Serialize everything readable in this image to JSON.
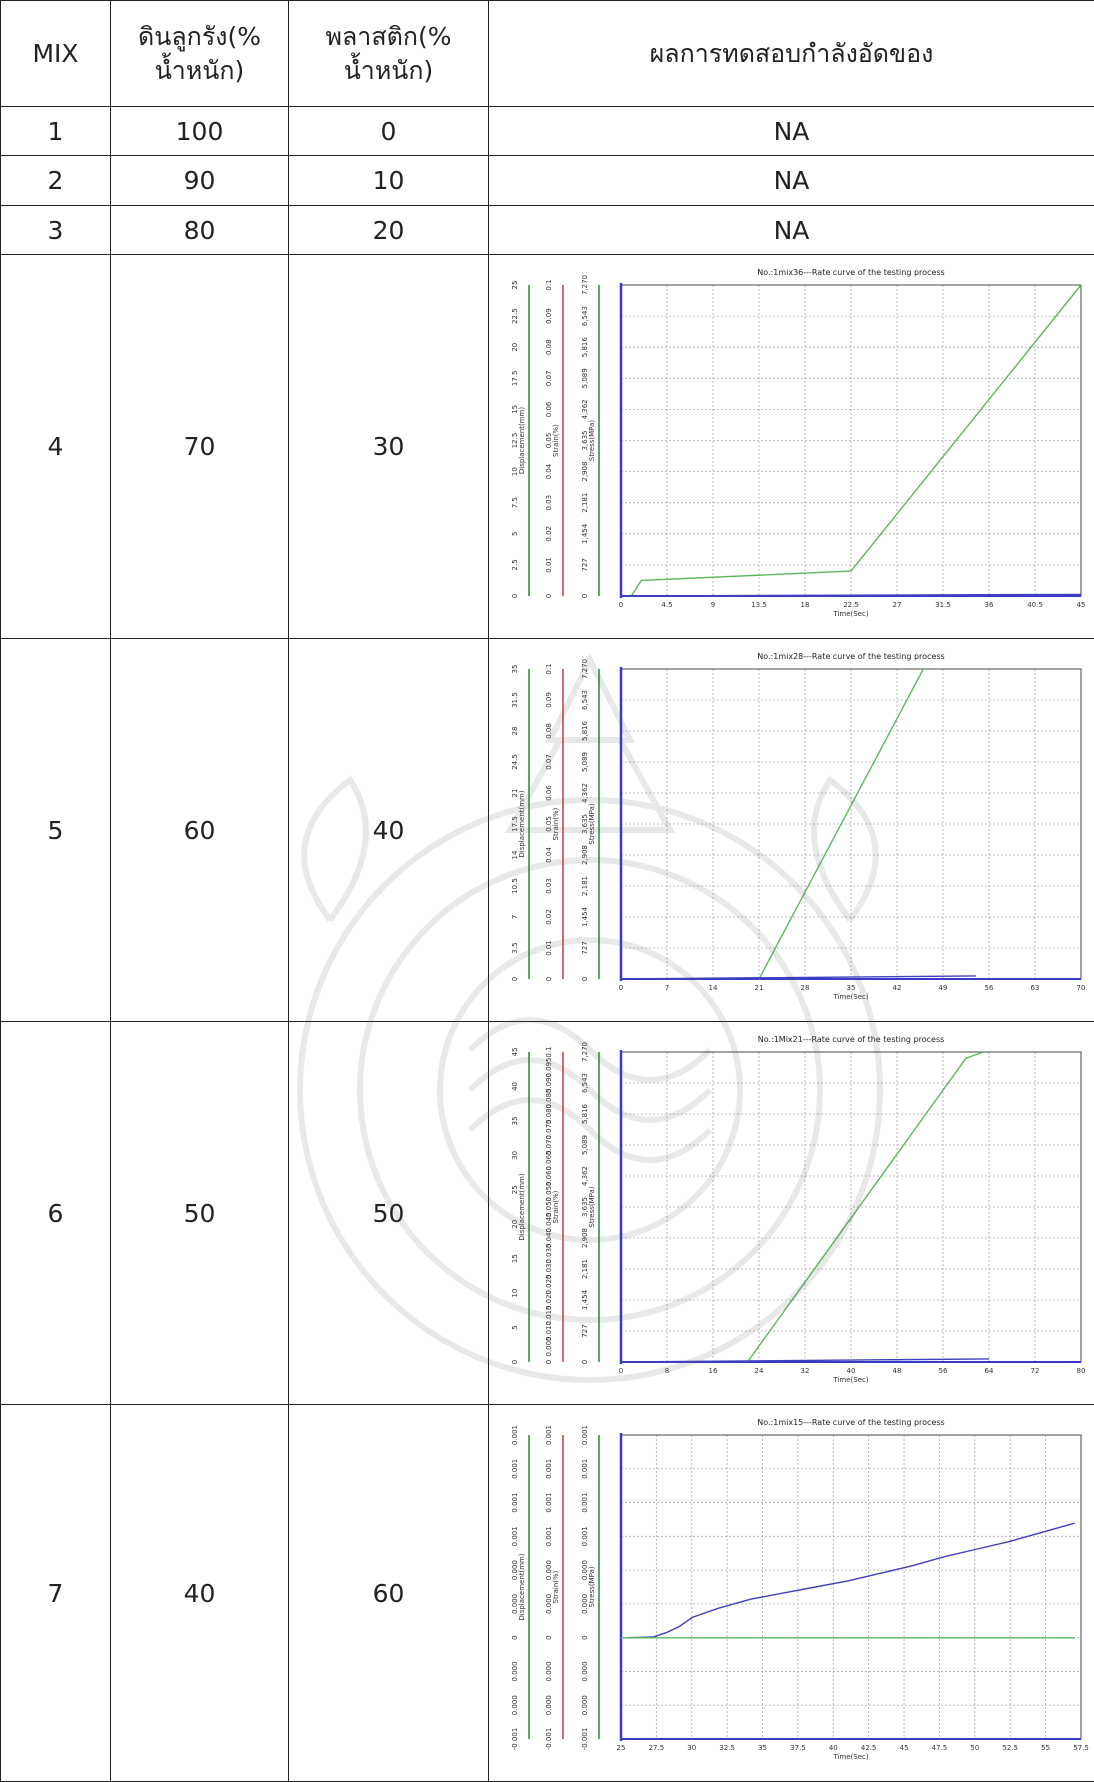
{
  "headers": {
    "mix": "MIX",
    "clay_line1": "ดินลูกรัง(%",
    "clay_line2": "น้ำหนัก)",
    "plastic_line1": "พลาสติก(%",
    "plastic_line2": "น้ำหนัก)",
    "result": "ผลการทดสอบกำลังอัดของ"
  },
  "rows": [
    {
      "mix": "1",
      "clay": "100",
      "plastic": "0",
      "result": "NA"
    },
    {
      "mix": "2",
      "clay": "90",
      "plastic": "10",
      "result": "NA"
    },
    {
      "mix": "3",
      "clay": "80",
      "plastic": "20",
      "result": "NA"
    },
    {
      "mix": "4",
      "clay": "70",
      "plastic": "30"
    },
    {
      "mix": "5",
      "clay": "60",
      "plastic": "40"
    },
    {
      "mix": "6",
      "clay": "50",
      "plastic": "50"
    },
    {
      "mix": "7",
      "clay": "40",
      "plastic": "60"
    }
  ],
  "chart_data": [
    {
      "type": "line",
      "title": "No.:1mix36---Rate curve of the testing process",
      "xlabel": "Time(Sec)",
      "x_ticks": [
        "0",
        "4.5",
        "9",
        "13.5",
        "18",
        "22.5",
        "27",
        "31.5",
        "36",
        "40.5",
        "45"
      ],
      "xlim": [
        0,
        45
      ],
      "y_axes": [
        {
          "label": "Displacement(mm)",
          "ticks": [
            "0",
            "2.5",
            "5",
            "7.5",
            "10",
            "12.5",
            "15",
            "17.5",
            "20",
            "22.5",
            "25"
          ],
          "color": "#2a8a2a"
        },
        {
          "label": "Strain(%)",
          "ticks": [
            "0",
            "0.01",
            "0.02",
            "0.03",
            "0.04",
            "0.05",
            "0.06",
            "0.07",
            "0.08",
            "0.09",
            "0.1"
          ],
          "color": "#2a8a2a"
        },
        {
          "label": "Stress(MPa)",
          "ticks": [
            "0",
            "727",
            "1,454",
            "2,181",
            "2,908",
            "3,635",
            "4,362",
            "5,089",
            "5,816",
            "6,543",
            "7,270"
          ],
          "color": "#333333"
        }
      ],
      "series": [
        {
          "color": "#5cb85c",
          "x": [
            1,
            2,
            22.5,
            45
          ],
          "y": [
            0,
            0.05,
            0.08,
            1.0
          ]
        },
        {
          "color": "#4040c0",
          "x": [
            0,
            45
          ],
          "y": [
            0,
            0.005
          ]
        }
      ]
    },
    {
      "type": "line",
      "title": "No.:1mix28---Rate curve of the testing process",
      "xlabel": "Time(Sec)",
      "x_ticks": [
        "0",
        "7",
        "14",
        "21",
        "28",
        "35",
        "42",
        "49",
        "56",
        "63",
        "70"
      ],
      "xlim": [
        0,
        70
      ],
      "y_axes": [
        {
          "label": "Displacement(mm)",
          "ticks": [
            "0",
            "3.5",
            "7",
            "10.5",
            "14",
            "17.5",
            "21",
            "24.5",
            "28",
            "31.5",
            "35"
          ],
          "color": "#2a8a2a"
        },
        {
          "label": "Strain(%)",
          "ticks": [
            "0",
            "0.01",
            "0.02",
            "0.03",
            "0.04",
            "0.05",
            "0.06",
            "0.07",
            "0.08",
            "0.09",
            "0.1"
          ],
          "color": "#2a8a2a"
        },
        {
          "label": "Stress(MPa)",
          "ticks": [
            "0",
            "727",
            "1,454",
            "2,181",
            "2,908",
            "3,635",
            "4,362",
            "5,089",
            "5,816",
            "6,543",
            "7,270"
          ],
          "color": "#333333"
        }
      ],
      "series": [
        {
          "color": "#5cb85c",
          "x": [
            21,
            46
          ],
          "y": [
            0,
            1.0
          ]
        },
        {
          "color": "#4040c0",
          "x": [
            0,
            54
          ],
          "y": [
            0,
            0.01
          ]
        }
      ]
    },
    {
      "type": "line",
      "title": "No.:1Mix21---Rate curve of the testing process",
      "xlabel": "Time(Sec)",
      "x_ticks": [
        "0",
        "8",
        "16",
        "24",
        "32",
        "40",
        "48",
        "56",
        "64",
        "72",
        "80"
      ],
      "xlim": [
        0,
        80
      ],
      "y_axes": [
        {
          "label": "Displacement(mm)",
          "ticks": [
            "0",
            "5",
            "10",
            "15",
            "20",
            "25",
            "30",
            "35",
            "40",
            "45"
          ],
          "color": "#2a8a2a"
        },
        {
          "label": "Strain(%)",
          "ticks": [
            "0",
            "0.005",
            "0.010",
            "0.015",
            "0.020",
            "0.025",
            "0.030",
            "0.035",
            "0.040",
            "0.045",
            "0.050",
            "0.055",
            "0.060",
            "0.065",
            "0.070",
            "0.075",
            "0.080",
            "0.085",
            "0.090",
            "0.095",
            "0.1"
          ],
          "color": "#2a8a2a"
        },
        {
          "label": "Stress(MPa)",
          "ticks": [
            "0",
            "727",
            "1,454",
            "2,181",
            "2,908",
            "3,635",
            "4,362",
            "5,089",
            "5,816",
            "6,543",
            "7,270"
          ],
          "color": "#333333"
        }
      ],
      "series": [
        {
          "color": "#5cb85c",
          "x": [
            22,
            60,
            63
          ],
          "y": [
            0,
            0.98,
            1.0
          ]
        },
        {
          "color": "#4040c0",
          "x": [
            0,
            64
          ],
          "y": [
            0,
            0.01
          ]
        }
      ]
    },
    {
      "type": "line",
      "title": "No.:1mix15---Rate curve of the testing process",
      "xlabel": "Time(Sec)",
      "x_ticks": [
        "25",
        "27.5",
        "30",
        "32.5",
        "35",
        "37.5",
        "40",
        "42.5",
        "45",
        "47.5",
        "50",
        "52.5",
        "55",
        "57.5"
      ],
      "xlim": [
        22.5,
        58
      ],
      "y_axes": [
        {
          "label": "Displacement(mm)",
          "ticks": [
            "-0.001",
            "0.000",
            "0.000",
            "0",
            "0.000",
            "0.000",
            "0.001",
            "0.001",
            "0.001",
            "0.001"
          ],
          "color": "#2a8a2a"
        },
        {
          "label": "Strain(%)",
          "ticks": [
            "-0.001",
            "0.000",
            "0.000",
            "0",
            "0.000",
            "0.000",
            "0.001",
            "0.001",
            "0.001",
            "0.001"
          ],
          "color": "#2a8a2a"
        },
        {
          "label": "Stress(MPa)",
          "ticks": [
            "-0.001",
            "0.000",
            "0.000",
            "0",
            "0.000",
            "0.000",
            "0.001",
            "0.001",
            "0.001",
            "0.001"
          ],
          "color": "#333333"
        }
      ],
      "series": [
        {
          "color": "#4040c0",
          "x": [
            23,
            25,
            26,
            27,
            28,
            30,
            32.5,
            35,
            37.5,
            40,
            42.5,
            45,
            47.5,
            50,
            52.5,
            55,
            57.5
          ],
          "y": [
            0.333,
            0.336,
            0.35,
            0.37,
            0.4,
            0.43,
            0.46,
            0.48,
            0.5,
            0.52,
            0.545,
            0.57,
            0.6,
            0.625,
            0.65,
            0.68,
            0.71
          ]
        },
        {
          "color": "#5cb85c",
          "x": [
            22.5,
            57.5
          ],
          "y": [
            0.333,
            0.333
          ]
        }
      ]
    }
  ]
}
